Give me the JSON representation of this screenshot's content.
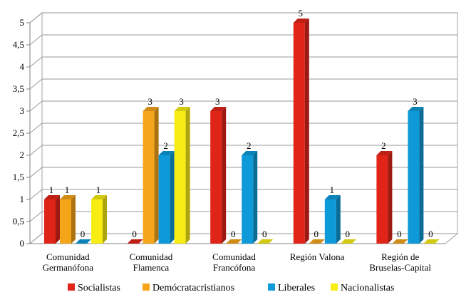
{
  "chart_data": {
    "type": "bar",
    "title": "",
    "xlabel": "",
    "ylabel": "",
    "ylim": [
      0,
      5
    ],
    "yticks": [
      "0",
      "0,5",
      "1",
      "1,5",
      "2",
      "2,5",
      "3",
      "3,5",
      "4",
      "4,5",
      "5"
    ],
    "grid": true,
    "legend_position": "bottom",
    "categories": [
      [
        "Comunidad",
        "Germanófona"
      ],
      [
        "Comunidad",
        "Flamenca"
      ],
      [
        "Comunidad",
        "Francófona"
      ],
      [
        "Región Valona"
      ],
      [
        "Región de",
        "Bruselas-Capital"
      ]
    ],
    "series": [
      {
        "name": "Socialistas",
        "color": "#e02418",
        "values": [
          1,
          0,
          3,
          5,
          2
        ]
      },
      {
        "name": "Demócratacristianos",
        "color": "#f5a51a",
        "values": [
          1,
          3,
          0,
          0,
          0
        ]
      },
      {
        "name": "Liberales",
        "color": "#0e9ad8",
        "values": [
          0,
          2,
          2,
          1,
          3
        ]
      },
      {
        "name": "Nacionalistas",
        "color": "#f7ec14",
        "values": [
          1,
          3,
          0,
          0,
          0
        ]
      }
    ]
  }
}
